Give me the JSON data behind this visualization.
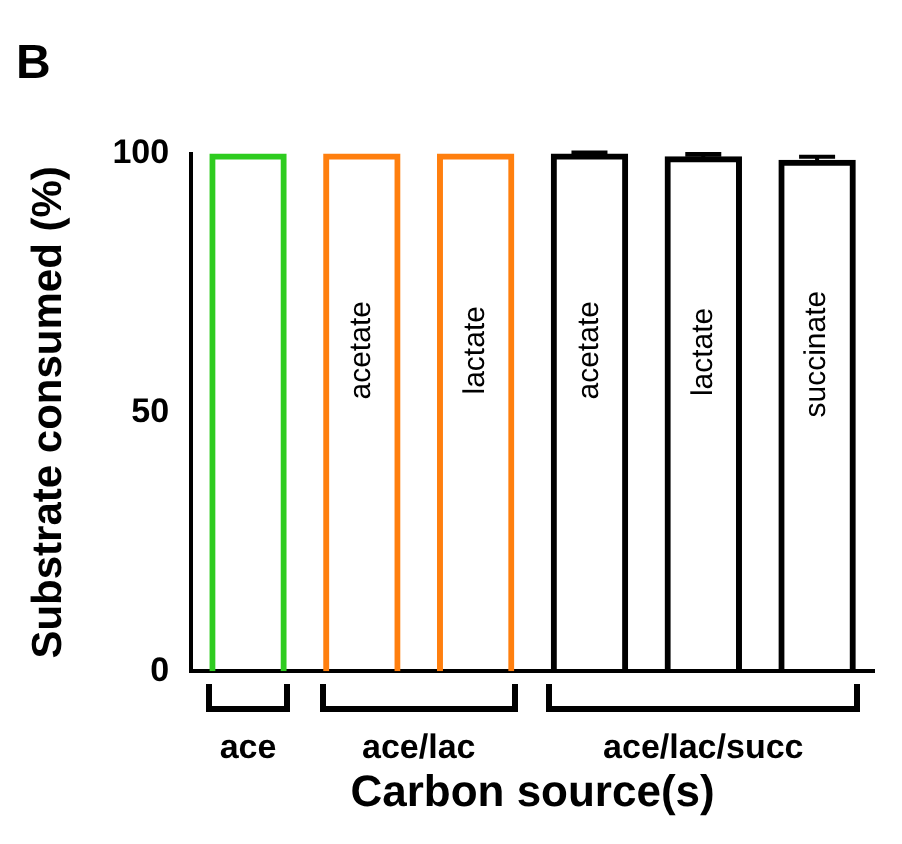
{
  "chart_data": {
    "type": "bar",
    "title": "B",
    "ylabel": "Substrate consumed (%)",
    "xlabel": "Carbon source(s)",
    "categories": [
      null,
      "acetate",
      "lactate",
      "acetate",
      "lactate",
      "succinate"
    ],
    "values": [
      100,
      100,
      100,
      100,
      99.5,
      98.8
    ],
    "errors": [
      null,
      null,
      null,
      0.2,
      0.4,
      0.6
    ],
    "colors": [
      "#2ecc1f",
      "#ff7f0e",
      "#ff7f0e",
      "#000000",
      "#000000",
      "#000000"
    ],
    "ylim": [
      0,
      100
    ],
    "yticks": [
      0,
      50,
      100
    ],
    "grid": false,
    "legend": false,
    "annotations": [
      "ace",
      "ace/lac",
      "ace/lac/succ"
    ]
  }
}
